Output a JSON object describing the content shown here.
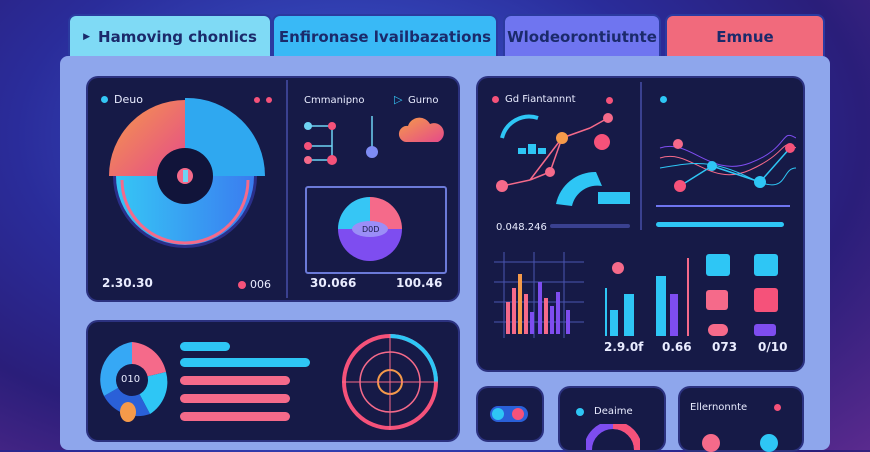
{
  "tabs": [
    {
      "label": "Hamoving chonlics",
      "icon": "play-icon",
      "color": "#6fd3f3"
    },
    {
      "label": "Enfironase lvailbazations",
      "color": "#3ab8f5"
    },
    {
      "label": "Wlodeorontiutnte",
      "color": "#6a6ff0"
    },
    {
      "label": "Emnue",
      "color": "#f56a7a"
    }
  ],
  "card1": {
    "title": "Deuo",
    "value_left": "2.30.30",
    "value_right": "006",
    "center_icon": "donut-chart-icon"
  },
  "card2": {
    "title": "Cmmanipno",
    "legend": "Gurno",
    "value_left": "30.066",
    "value_right": "100.46",
    "pie_label": "D0D",
    "cloud_icon": "cloud-icon"
  },
  "card3": {
    "title": "Gd Fiantannnt",
    "value": "0.048.246",
    "values": [
      "2.9.0f",
      "0.66",
      "073",
      "0/10"
    ]
  },
  "card4": {
    "center_label": "010"
  },
  "card6": {
    "title": "Deaime"
  },
  "card7": {
    "title": "Ellernonnte"
  },
  "colors": {
    "accent_cyan": "#2ec6f5",
    "accent_pink": "#f5527a",
    "accent_purple": "#7e4df0",
    "accent_orange": "#f5824a"
  }
}
